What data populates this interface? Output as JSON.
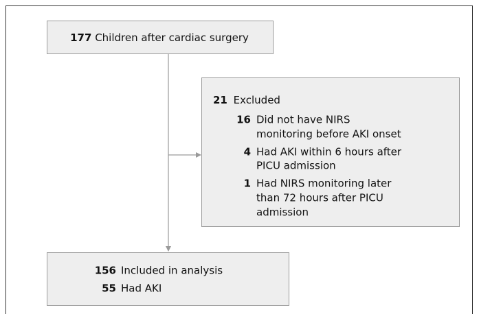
{
  "nodes": [
    {
      "count": 177,
      "label": "Children after cardiac surgery"
    },
    {
      "count": 21,
      "label": "Excluded",
      "reasons": [
        {
          "count": 16,
          "lines": [
            "Did not have NIRS",
            "monitoring before AKI onset"
          ]
        },
        {
          "count": 4,
          "lines": [
            "Had AKI within 6 hours after",
            "PICU admission"
          ]
        },
        {
          "count": 1,
          "lines": [
            "Had NIRS monitoring later",
            "than 72 hours after PICU",
            "admission"
          ]
        }
      ]
    },
    {
      "count": 156,
      "label": "Included in analysis",
      "sub": {
        "count": 55,
        "label": "Had AKI"
      }
    }
  ]
}
